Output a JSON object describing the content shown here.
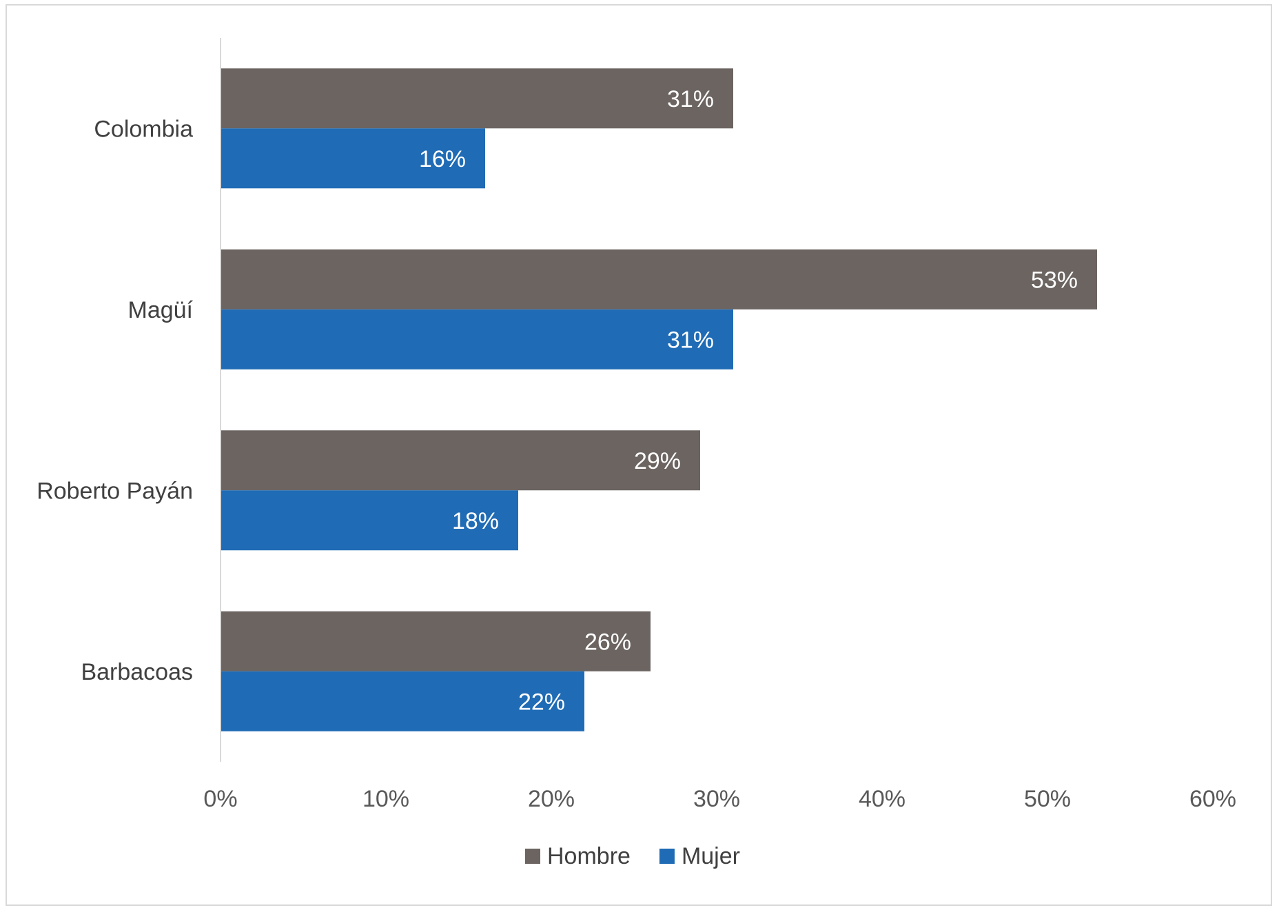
{
  "chart_data": {
    "type": "bar",
    "orientation": "horizontal",
    "categories": [
      "Colombia",
      "Magüí",
      "Roberto Payán",
      "Barbacoas"
    ],
    "series": [
      {
        "name": "Hombre",
        "color": "#6b6461",
        "values": [
          31,
          53,
          29,
          26
        ],
        "labels": [
          "31%",
          "53%",
          "29%",
          "26%"
        ]
      },
      {
        "name": "Mujer",
        "color": "#1f6bb5",
        "values": [
          16,
          31,
          18,
          22
        ],
        "labels": [
          "16%",
          "31%",
          "18%",
          "22%"
        ]
      }
    ],
    "x_ticks": [
      "0%",
      "10%",
      "20%",
      "30%",
      "40%",
      "50%",
      "60%"
    ],
    "xlim": [
      0,
      60
    ],
    "xlabel": "",
    "ylabel": "",
    "title": "",
    "grid": false,
    "legend_position": "bottom",
    "value_labels": "inside-end, white"
  }
}
